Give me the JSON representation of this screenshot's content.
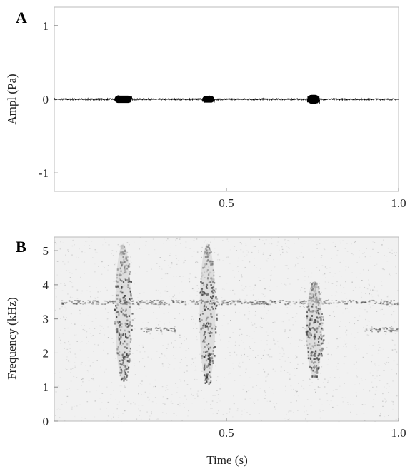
{
  "chart_data": [
    {
      "panel_label": "A",
      "type": "line",
      "title": "",
      "xlabel": "",
      "ylabel": "Ampl (Pa)",
      "xlim": [
        0,
        1.0
      ],
      "ylim": [
        -1.25,
        1.25
      ],
      "x_ticks": [
        {
          "value": 0.5,
          "label": "0.5"
        },
        {
          "value": 1.0,
          "label": "1.0"
        }
      ],
      "y_ticks": [
        {
          "value": 1,
          "label": "1"
        },
        {
          "value": 0,
          "label": "0"
        },
        {
          "value": -1,
          "label": "-1"
        }
      ],
      "grid": false,
      "series": [
        {
          "color": "#000000",
          "baseline_amplitude": 0.01,
          "bursts": [
            {
              "start": 0.175,
              "end": 0.225,
              "amplitude": 0.05
            },
            {
              "start": 0.43,
              "end": 0.465,
              "amplitude": 0.045
            },
            {
              "start": 0.735,
              "end": 0.77,
              "amplitude": 0.06
            }
          ]
        }
      ]
    },
    {
      "panel_label": "B",
      "type": "heatmap",
      "title": "",
      "xlabel": "Time (s)",
      "ylabel": "Frequency (kHz)",
      "xlim": [
        0,
        1.0
      ],
      "ylim": [
        0,
        5.4
      ],
      "x_ticks": [
        {
          "value": 0.5,
          "label": "0.5"
        },
        {
          "value": 1.0,
          "label": "1.0"
        }
      ],
      "y_ticks": [
        {
          "value": 0,
          "label": "0"
        },
        {
          "value": 1,
          "label": "1"
        },
        {
          "value": 2,
          "label": "2"
        },
        {
          "value": 3,
          "label": "3"
        },
        {
          "value": 4,
          "label": "4"
        },
        {
          "value": 5,
          "label": "5"
        }
      ],
      "grid": false,
      "colormap": "grayscale-inverted",
      "calls": [
        {
          "time": 0.2,
          "freq_low": 1.2,
          "freq_high": 5.2
        },
        {
          "time": 0.445,
          "freq_low": 1.1,
          "freq_high": 5.2
        },
        {
          "time": 0.755,
          "freq_low": 1.3,
          "freq_high": 4.1
        }
      ],
      "tonal_bands": [
        {
          "t_start": 0.02,
          "t_end": 0.5,
          "freq": 3.5
        },
        {
          "t_start": 0.5,
          "t_end": 1.0,
          "freq": 3.5
        },
        {
          "t_start": 0.25,
          "t_end": 0.35,
          "freq": 2.7
        },
        {
          "t_start": 0.9,
          "t_end": 1.0,
          "freq": 2.7
        }
      ]
    }
  ]
}
